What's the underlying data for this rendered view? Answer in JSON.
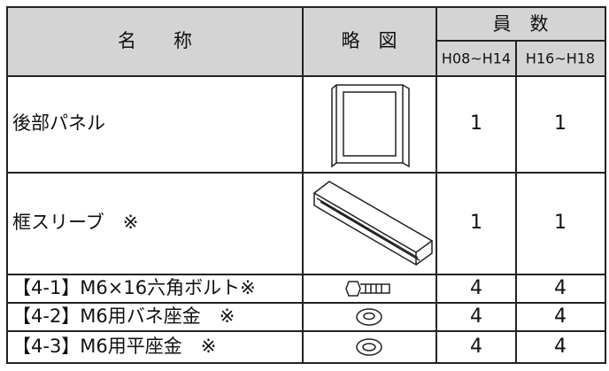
{
  "header": {
    "name": "名　　称",
    "figure": "略　図",
    "count": "員　数",
    "sub": [
      "H08~H14",
      "H16~H18"
    ]
  },
  "rows": [
    {
      "name": "後部パネル",
      "counts": [
        1,
        1
      ]
    },
    {
      "name": "框スリーブ　※",
      "counts": [
        1,
        1
      ]
    },
    {
      "name": "【4-1】M6×16六角ボルト※",
      "counts": [
        4,
        4
      ]
    },
    {
      "name": "【4-2】M6用バネ座金　※",
      "counts": [
        4,
        4
      ]
    },
    {
      "name": "【4-3】M6用平座金　※",
      "counts": [
        4,
        4
      ]
    }
  ]
}
